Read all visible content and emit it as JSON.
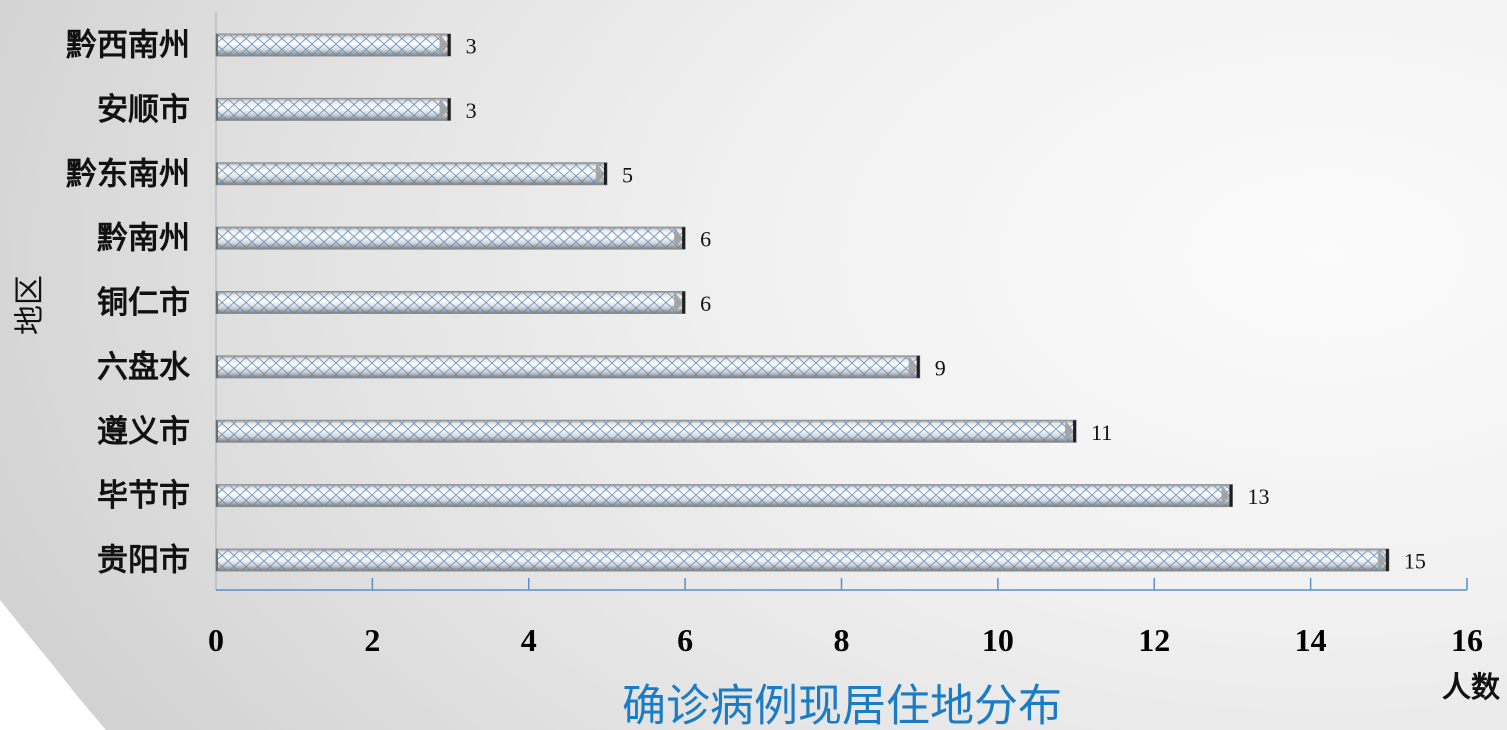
{
  "chart_data": {
    "type": "bar",
    "orientation": "horizontal",
    "title": "确诊病例现居住地分布",
    "xlabel": "人数",
    "ylabel": "地区",
    "categories": [
      "黔西南州",
      "安顺市",
      "黔东南州",
      "黔南州",
      "铜仁市",
      "六盘水",
      "遵义市",
      "毕节市",
      "贵阳市"
    ],
    "values": [
      3,
      3,
      5,
      6,
      6,
      9,
      11,
      13,
      15
    ],
    "xlim": [
      0,
      16
    ],
    "xticks": [
      0,
      2,
      4,
      6,
      8,
      10,
      12,
      14,
      16
    ],
    "grid": false
  },
  "colors": {
    "title": "#1b7cc6",
    "axis": "#5b8fcb",
    "hatch": "#4f87c4",
    "bar_cap": "#1e1e1e"
  }
}
